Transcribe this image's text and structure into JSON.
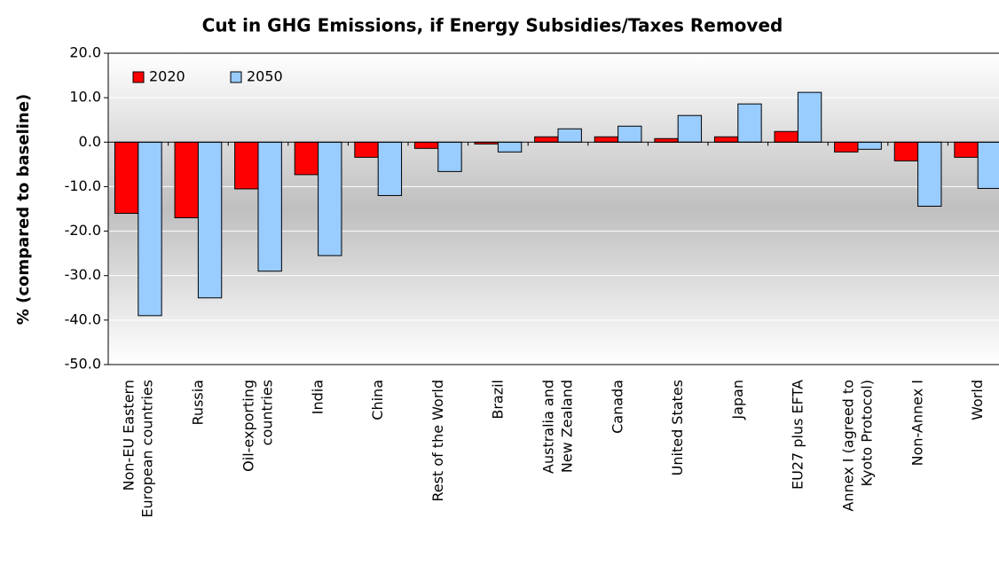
{
  "chart_data": {
    "type": "bar",
    "title": "Cut in GHG Emissions, if Energy Subsidies/Taxes Removed",
    "y_label": "% (compared to baseline)",
    "categories": [
      "Non-EU Eastern\nEuropean countries",
      "Russia",
      "Oil-exporting\ncountries",
      "India",
      "China",
      "Rest of the World",
      "Brazil",
      "Australia and\nNew Zealand",
      "Canada",
      "United States",
      "Japan",
      "EU27 plus EFTA",
      "Annex I (agreed to\nKyoto Protocol)",
      "Non-Annex I",
      "World"
    ],
    "series": [
      {
        "name": "2020",
        "color": "#ff0000",
        "values": [
          -16,
          -17,
          -10.5,
          -7.3,
          -3.4,
          -1.4,
          -0.4,
          1.2,
          1.2,
          0.8,
          1.2,
          2.4,
          -2.2,
          -4.2,
          -3.4
        ]
      },
      {
        "name": "2050",
        "color": "#99ccff",
        "values": [
          -39,
          -35,
          -29,
          -25.5,
          -12,
          -6.6,
          -2.2,
          3.0,
          3.6,
          6.0,
          8.6,
          11.2,
          -1.6,
          -14.4,
          -10.4
        ]
      }
    ],
    "ylim": [
      -50,
      20
    ],
    "yticks": [
      {
        "value": -50,
        "label": "-50.0"
      },
      {
        "value": -40,
        "label": "-40.0"
      },
      {
        "value": -30,
        "label": "-30.0"
      },
      {
        "value": -20,
        "label": "-20.0"
      },
      {
        "value": -10,
        "label": "-10.0"
      },
      {
        "value": 0,
        "label": "0.0"
      },
      {
        "value": 10,
        "label": "10.0"
      },
      {
        "value": 20,
        "label": "20.0"
      }
    ],
    "grid": true,
    "legend": "top-left"
  }
}
